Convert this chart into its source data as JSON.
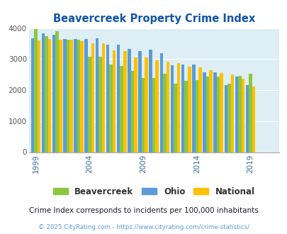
{
  "title": "Beavercreek Property Crime Index",
  "years": [
    1999,
    2000,
    2001,
    2002,
    2003,
    2004,
    2005,
    2006,
    2007,
    2008,
    2009,
    2010,
    2011,
    2012,
    2013,
    2014,
    2015,
    2016,
    2017,
    2018,
    2019,
    2020,
    2021
  ],
  "beavercreek": [
    3960,
    3750,
    3910,
    3620,
    3630,
    3080,
    3080,
    2820,
    2790,
    2620,
    2390,
    2400,
    2530,
    2200,
    2300,
    2310,
    2440,
    2440,
    2200,
    2450,
    2520,
    0,
    0
  ],
  "ohio": [
    3660,
    3820,
    3780,
    3640,
    3640,
    3640,
    3680,
    3470,
    3460,
    3320,
    3270,
    3310,
    3200,
    2800,
    2820,
    2820,
    2570,
    2580,
    2170,
    2430,
    2170,
    0,
    0
  ],
  "national": [
    3610,
    3640,
    3620,
    3620,
    3570,
    3510,
    3500,
    3280,
    3260,
    3050,
    3050,
    2960,
    2920,
    2870,
    2750,
    2730,
    2640,
    2560,
    2510,
    2360,
    2110,
    0,
    0
  ],
  "color_beavercreek": "#8dc63f",
  "color_ohio": "#5b9bd5",
  "color_national": "#ffc000",
  "fig_bg": "#ffffff",
  "plot_bg": "#ddeef5",
  "ylim": [
    0,
    4000
  ],
  "yticks": [
    0,
    1000,
    2000,
    3000,
    4000
  ],
  "xlabel_ticks": [
    1999,
    2004,
    2009,
    2014,
    2019
  ],
  "footnote": "Crime Index corresponds to incidents per 100,000 inhabitants",
  "copyright": "© 2025 CityRating.com - https://www.cityrating.com/crime-statistics/",
  "title_color": "#1155aa",
  "footnote_color": "#1a1a2e",
  "copyright_color": "#5b9bd5"
}
